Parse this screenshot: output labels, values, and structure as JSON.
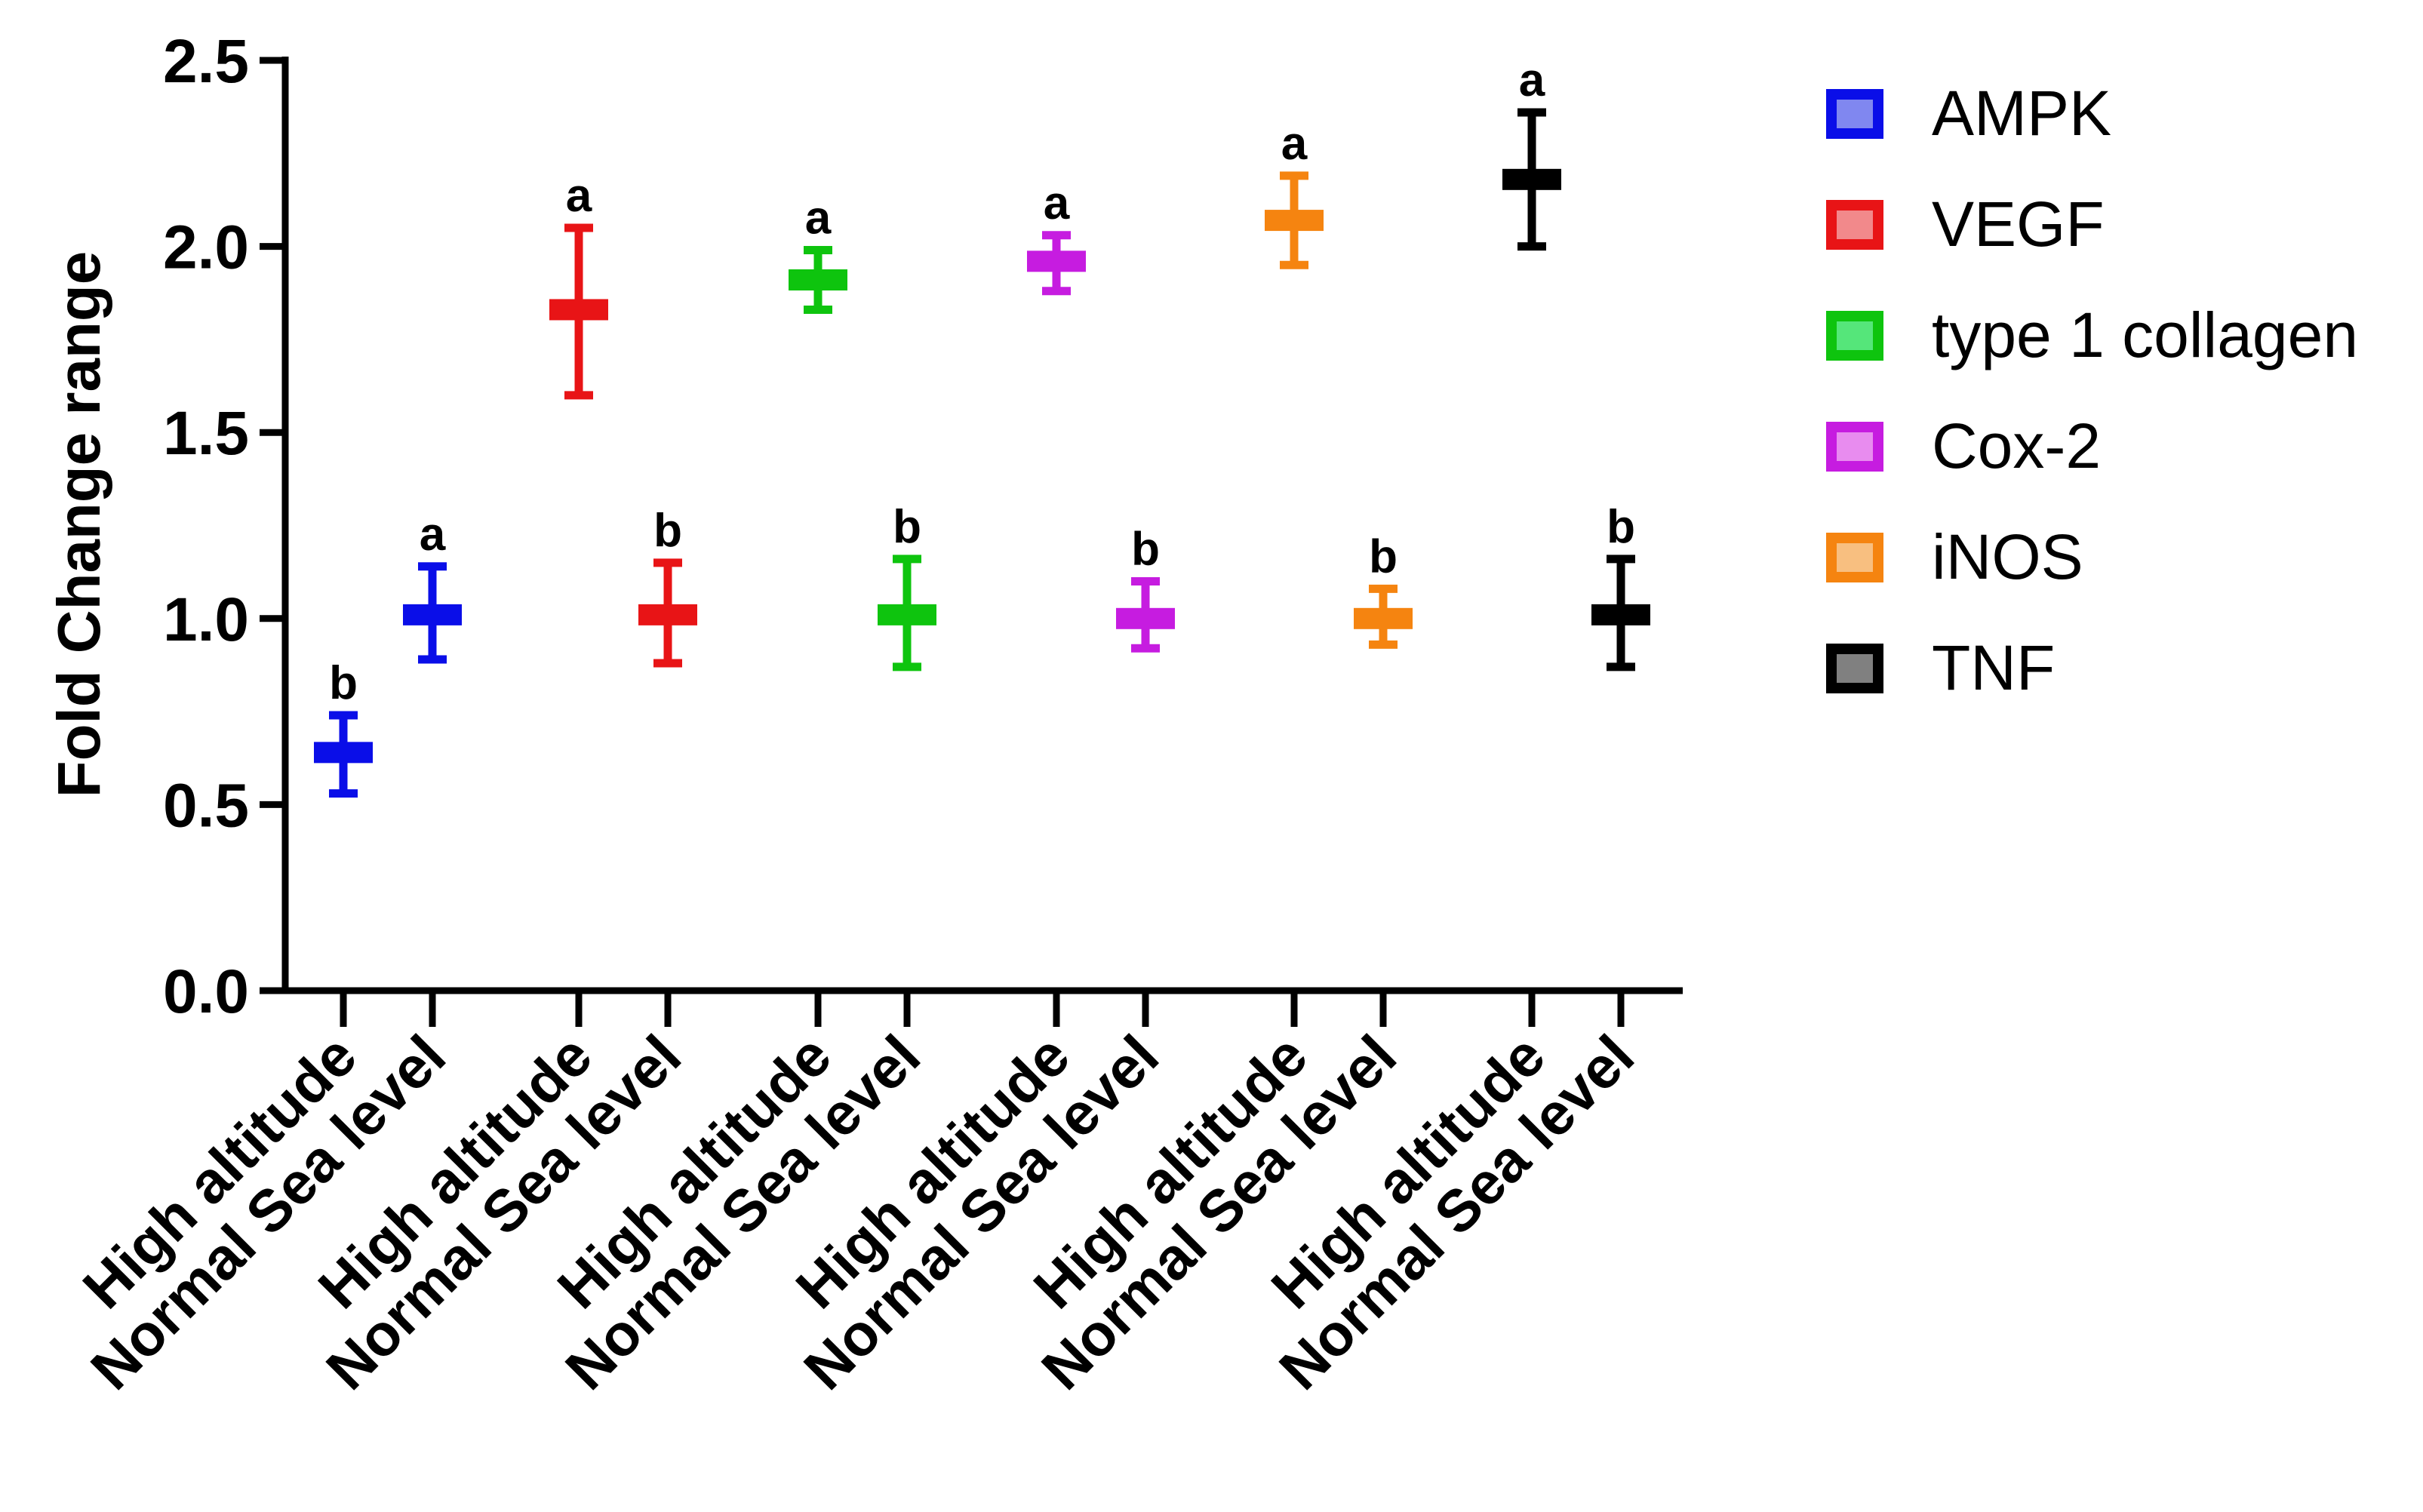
{
  "chart_data": {
    "type": "scatter",
    "style": "mean-with-error-bars",
    "title": "",
    "xlabel": "",
    "ylabel": "Fold Change range",
    "ylim": [
      0,
      2.5
    ],
    "yticks": [
      "0.0",
      "0.5",
      "1.0",
      "1.5",
      "2.0",
      "2.5"
    ],
    "categories": [
      "High altitude",
      "Normal Sea level"
    ],
    "series": [
      {
        "name": "AMPK",
        "color": "#0a0ee8",
        "fill": "#8087f0",
        "points": [
          {
            "category": "High altitude",
            "mean": 0.64,
            "low": 0.53,
            "high": 0.74,
            "letter": "b"
          },
          {
            "category": "Normal Sea level",
            "mean": 1.01,
            "low": 0.89,
            "high": 1.14,
            "letter": "a"
          }
        ]
      },
      {
        "name": "VEGF",
        "color": "#e81416",
        "fill": "#f2898b",
        "points": [
          {
            "category": "High altitude",
            "mean": 1.83,
            "low": 1.6,
            "high": 2.05,
            "letter": "a"
          },
          {
            "category": "Normal Sea level",
            "mean": 1.01,
            "low": 0.88,
            "high": 1.15,
            "letter": "b"
          }
        ]
      },
      {
        "name": "type 1 collagen",
        "color": "#0ec40e",
        "fill": "#55e67a",
        "points": [
          {
            "category": "High altitude",
            "mean": 1.91,
            "low": 1.83,
            "high": 1.99,
            "letter": "a"
          },
          {
            "category": "Normal Sea level",
            "mean": 1.01,
            "low": 0.87,
            "high": 1.16,
            "letter": "b"
          }
        ]
      },
      {
        "name": "Cox-2",
        "color": "#c61ce0",
        "fill": "#e88cef",
        "points": [
          {
            "category": "High altitude",
            "mean": 1.96,
            "low": 1.88,
            "high": 2.03,
            "letter": "a"
          },
          {
            "category": "Normal Sea level",
            "mean": 1.0,
            "low": 0.92,
            "high": 1.1,
            "letter": "b"
          }
        ]
      },
      {
        "name": "iNOS",
        "color": "#f58410",
        "fill": "#f8bf80",
        "points": [
          {
            "category": "High altitude",
            "mean": 2.07,
            "low": 1.95,
            "high": 2.19,
            "letter": "a"
          },
          {
            "category": "Normal Sea level",
            "mean": 1.0,
            "low": 0.93,
            "high": 1.08,
            "letter": "b"
          }
        ]
      },
      {
        "name": "TNF",
        "color": "#000000",
        "fill": "#808080",
        "points": [
          {
            "category": "High altitude",
            "mean": 2.18,
            "low": 2.0,
            "high": 2.36,
            "letter": "a"
          },
          {
            "category": "Normal Sea level",
            "mean": 1.01,
            "low": 0.87,
            "high": 1.16,
            "letter": "b"
          }
        ]
      }
    ],
    "legend_position": "right"
  }
}
